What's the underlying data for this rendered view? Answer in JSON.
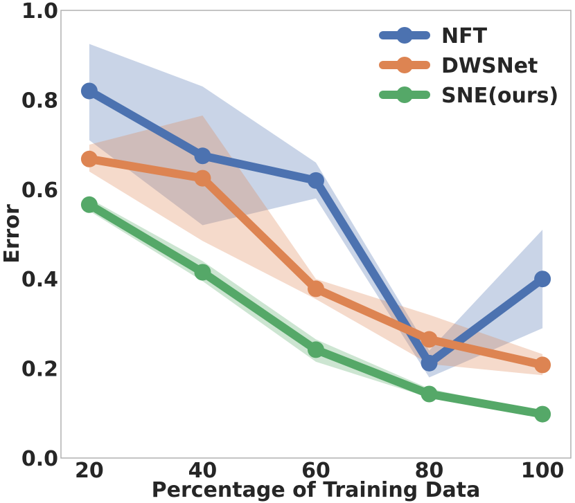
{
  "chart_data": {
    "type": "line",
    "title": "",
    "xlabel": "Percentage of Training Data",
    "ylabel": "Error",
    "x": [
      20,
      40,
      60,
      80,
      100
    ],
    "xlim": [
      15,
      105
    ],
    "ylim": [
      0.0,
      1.0
    ],
    "xticks": [
      "20",
      "40",
      "60",
      "80",
      "100"
    ],
    "yticks": [
      "0.0",
      "0.2",
      "0.4",
      "0.6",
      "0.8",
      "1.0"
    ],
    "grid": false,
    "legend_position": "top-right",
    "series": [
      {
        "name": "NFT",
        "color": "#4c72b0",
        "values": [
          0.82,
          0.675,
          0.62,
          0.212,
          0.4
        ],
        "lower": [
          0.71,
          0.52,
          0.58,
          0.18,
          0.29
        ],
        "upper": [
          0.925,
          0.83,
          0.66,
          0.24,
          0.51
        ]
      },
      {
        "name": "DWSNet",
        "color": "#dd8452",
        "values": [
          0.668,
          0.625,
          0.378,
          0.265,
          0.208
        ],
        "lower": [
          0.64,
          0.485,
          0.355,
          0.21,
          0.185
        ],
        "upper": [
          0.7,
          0.765,
          0.4,
          0.32,
          0.232
        ]
      },
      {
        "name": "SNE(ours)",
        "color": "#55a868",
        "values": [
          0.566,
          0.415,
          0.242,
          0.143,
          0.098
        ],
        "lower": [
          0.552,
          0.395,
          0.215,
          0.135,
          0.094
        ],
        "upper": [
          0.58,
          0.44,
          0.265,
          0.155,
          0.102
        ]
      }
    ]
  }
}
